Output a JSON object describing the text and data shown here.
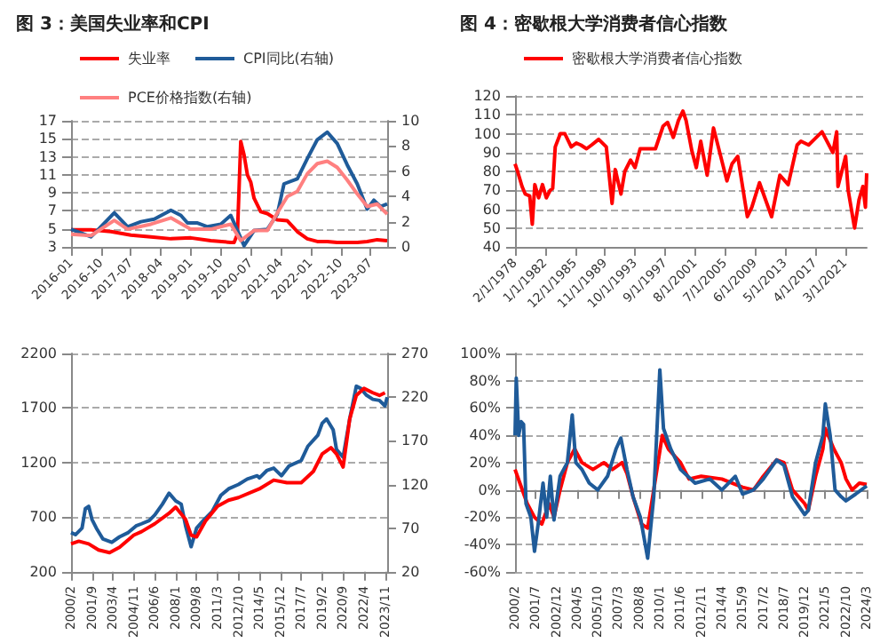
{
  "chart_data": [
    {
      "type": "line",
      "title": "图 3：美国失业率和CPI",
      "legend": "top",
      "grid": "y",
      "line_style": "solid",
      "marker": "none",
      "xlim": [
        "2016-01",
        "2023-12"
      ],
      "xticks": [
        "2016-01",
        "2016-10",
        "2017-07",
        "2018-04",
        "2019-01",
        "2019-10",
        "2020-07",
        "2021-04",
        "2022-01",
        "2022-10",
        "2023-07"
      ],
      "ylim": [
        3,
        17
      ],
      "yticks": [
        3,
        5,
        7,
        9,
        11,
        13,
        15,
        17
      ],
      "y2lim": [
        0,
        10
      ],
      "y2ticks": [
        0,
        2,
        4,
        6,
        8,
        10
      ],
      "series": [
        {
          "name": "失业率",
          "color": "#ff0000",
          "x": [
            "2016-01",
            "2016-07",
            "2017-01",
            "2017-07",
            "2018-01",
            "2018-07",
            "2019-01",
            "2019-07",
            "2020-01",
            "2020-02",
            "2020-03",
            "2020-04",
            "2020-05",
            "2020-06",
            "2020-07",
            "2020-08",
            "2020-10",
            "2020-12",
            "2021-03",
            "2021-06",
            "2021-09",
            "2021-12",
            "2022-03",
            "2022-06",
            "2022-09",
            "2022-12",
            "2023-03",
            "2023-06",
            "2023-09",
            "2023-12"
          ],
          "values": [
            4.9,
            4.9,
            4.7,
            4.3,
            4.1,
            3.9,
            4.0,
            3.7,
            3.5,
            3.5,
            4.4,
            14.7,
            13.2,
            11.0,
            10.2,
            8.4,
            6.9,
            6.7,
            6.0,
            5.9,
            4.7,
            3.9,
            3.6,
            3.6,
            3.5,
            3.5,
            3.5,
            3.6,
            3.8,
            3.7
          ]
        },
        {
          "name": "CPI同比(右轴)",
          "color": "#1f5b99",
          "axis": "y2",
          "x": [
            "2016-01",
            "2016-04",
            "2016-07",
            "2016-10",
            "2017-02",
            "2017-06",
            "2017-10",
            "2018-02",
            "2018-07",
            "2018-10",
            "2018-12",
            "2019-03",
            "2019-06",
            "2019-10",
            "2020-01",
            "2020-05",
            "2020-08",
            "2020-12",
            "2021-03",
            "2021-05",
            "2021-09",
            "2021-12",
            "2022-03",
            "2022-06",
            "2022-09",
            "2022-12",
            "2023-03",
            "2023-06",
            "2023-08",
            "2023-10",
            "2023-12"
          ],
          "values": [
            1.4,
            1.1,
            0.8,
            1.6,
            2.7,
            1.6,
            2.0,
            2.2,
            2.9,
            2.5,
            1.9,
            1.9,
            1.6,
            1.8,
            2.5,
            0.1,
            1.3,
            1.4,
            2.6,
            5.0,
            5.4,
            7.0,
            8.5,
            9.1,
            8.2,
            6.5,
            5.0,
            3.0,
            3.7,
            3.2,
            3.4
          ]
        },
        {
          "name": "PCE价格指数(右轴)",
          "color": "#ff8080",
          "axis": "y2",
          "x": [
            "2016-01",
            "2016-07",
            "2017-02",
            "2017-06",
            "2018-01",
            "2018-07",
            "2019-01",
            "2019-07",
            "2020-01",
            "2020-04",
            "2020-08",
            "2020-12",
            "2021-03",
            "2021-06",
            "2021-09",
            "2021-12",
            "2022-03",
            "2022-06",
            "2022-09",
            "2022-12",
            "2023-03",
            "2023-06",
            "2023-09",
            "2023-12"
          ],
          "values": [
            1.0,
            0.9,
            2.1,
            1.4,
            1.8,
            2.3,
            1.4,
            1.4,
            1.8,
            0.5,
            1.3,
            1.3,
            2.7,
            4.0,
            4.4,
            5.8,
            6.6,
            6.8,
            6.3,
            5.3,
            4.2,
            3.2,
            3.4,
            2.6
          ]
        }
      ]
    },
    {
      "type": "line",
      "title": "图 4：密歇根大学消费者信心指数",
      "legend": "top",
      "grid": "y",
      "line_style": "solid",
      "marker": "none",
      "xlim": [
        "1978-02",
        "2024-01"
      ],
      "xticks": [
        {
          "value": "1978-02",
          "label": "2/1/1978"
        },
        {
          "value": "1982-01",
          "label": "1/1/1982"
        },
        {
          "value": "1985-12",
          "label": "12/1/1985"
        },
        {
          "value": "1989-11",
          "label": "11/1/1989"
        },
        {
          "value": "1993-10",
          "label": "10/1/1993"
        },
        {
          "value": "1997-09",
          "label": "9/1/1997"
        },
        {
          "value": "2001-08",
          "label": "8/1/2001"
        },
        {
          "value": "2005-07",
          "label": "7/1/2005"
        },
        {
          "value": "2009-06",
          "label": "6/1/2009"
        },
        {
          "value": "2013-05",
          "label": "5/1/2013"
        },
        {
          "value": "2017-04",
          "label": "4/1/2017"
        },
        {
          "value": "2021-03",
          "label": "3/1/2021"
        }
      ],
      "ylim": [
        40,
        120
      ],
      "yticks": [
        40,
        50,
        60,
        70,
        80,
        90,
        100,
        110,
        120
      ],
      "series": [
        {
          "name": "密歇根大学消费者信心指数",
          "color": "#ff0000",
          "x": [
            "1978-02",
            "1978-06",
            "1979-01",
            "1979-06",
            "1980-01",
            "1980-05",
            "1980-09",
            "1981-03",
            "1981-09",
            "1982-03",
            "1982-09",
            "1983-01",
            "1983-05",
            "1984-01",
            "1984-08",
            "1985-06",
            "1986-02",
            "1986-09",
            "1987-06",
            "1988-02",
            "1989-01",
            "1990-01",
            "1990-10",
            "1991-03",
            "1991-12",
            "1992-06",
            "1993-03",
            "1993-10",
            "1994-06",
            "1995-06",
            "1996-06",
            "1997-06",
            "1998-01",
            "1998-10",
            "1999-06",
            "2000-01",
            "2000-06",
            "2001-03",
            "2001-10",
            "2002-05",
            "2003-03",
            "2004-01",
            "2005-10",
            "2006-06",
            "2007-03",
            "2008-06",
            "2009-01",
            "2010-01",
            "2011-08",
            "2012-09",
            "2013-10",
            "2014-12",
            "2015-06",
            "2016-06",
            "2017-03",
            "2018-03",
            "2019-08",
            "2020-02",
            "2020-04",
            "2021-04",
            "2021-08",
            "2022-06",
            "2023-01",
            "2023-07",
            "2023-11",
            "2024-01"
          ],
          "values": [
            84,
            80,
            72,
            68,
            67,
            52,
            73,
            66,
            73,
            66,
            70,
            71,
            93,
            100,
            100,
            93,
            95,
            94,
            92,
            94,
            97,
            93,
            63,
            81,
            68,
            80,
            86,
            82,
            92,
            92,
            92,
            104,
            106,
            98,
            107,
            112,
            107,
            91,
            82,
            96,
            78,
            103,
            75,
            84,
            88,
            56,
            61,
            74,
            56,
            78,
            73,
            94,
            96,
            94,
            97,
            101,
            90,
            101,
            72,
            88,
            70,
            50,
            65,
            72,
            61,
            79
          ]
        }
      ]
    },
    {
      "type": "line",
      "legend": false,
      "grid": "y",
      "line_style": "solid",
      "marker": "none",
      "xlim": [
        "2000-02",
        "2024-01"
      ],
      "xticks": [
        {
          "value": "2000-02",
          "label": "2000/2"
        },
        {
          "value": "2001-09",
          "label": "2001/9"
        },
        {
          "value": "2003-04",
          "label": "2003/4"
        },
        {
          "value": "2004-11",
          "label": "2004/11"
        },
        {
          "value": "2006-06",
          "label": "2006/6"
        },
        {
          "value": "2008-01",
          "label": "2008/1"
        },
        {
          "value": "2009-08",
          "label": "2009/8"
        },
        {
          "value": "2011-03",
          "label": "2011/3"
        },
        {
          "value": "2012-10",
          "label": "2012/10"
        },
        {
          "value": "2014-05",
          "label": "2014/5"
        },
        {
          "value": "2015-12",
          "label": "2015/12"
        },
        {
          "value": "2017-07",
          "label": "2017/7"
        },
        {
          "value": "2019-02",
          "label": "2019/2"
        },
        {
          "value": "2020-09",
          "label": "2020/9"
        },
        {
          "value": "2022-04",
          "label": "2022/4"
        },
        {
          "value": "2023-11",
          "label": "2023/11"
        }
      ],
      "ylim": [
        200,
        2200
      ],
      "yticks": [
        200,
        700,
        1200,
        1700,
        2200
      ],
      "y2lim": [
        20,
        270
      ],
      "y2ticks": [
        20,
        70,
        120,
        170,
        220,
        270
      ],
      "series": [
        {
          "color": "#1f5b99",
          "x": [
            "2000-02",
            "2000-06",
            "2000-12",
            "2001-03",
            "2001-06",
            "2001-09",
            "2002-01",
            "2002-07",
            "2003-03",
            "2003-10",
            "2004-06",
            "2005-01",
            "2005-06",
            "2006-01",
            "2006-06",
            "2007-01",
            "2007-07",
            "2008-01",
            "2008-06",
            "2008-10",
            "2009-03",
            "2009-08",
            "2010-03",
            "2010-10",
            "2011-06",
            "2012-01",
            "2012-10",
            "2013-06",
            "2014-03",
            "2014-05",
            "2014-12",
            "2015-06",
            "2016-01",
            "2016-08",
            "2017-07",
            "2018-01",
            "2018-10",
            "2019-02",
            "2019-06",
            "2019-12",
            "2020-03",
            "2020-09",
            "2021-03",
            "2021-09",
            "2022-01",
            "2022-06",
            "2022-12",
            "2023-06",
            "2023-11",
            "2024-01"
          ],
          "values": [
            560,
            540,
            600,
            780,
            800,
            680,
            600,
            500,
            470,
            520,
            560,
            620,
            640,
            670,
            720,
            820,
            920,
            850,
            820,
            620,
            430,
            600,
            680,
            750,
            900,
            960,
            1000,
            1050,
            1080,
            1060,
            1130,
            1150,
            1080,
            1170,
            1220,
            1350,
            1450,
            1560,
            1600,
            1500,
            1320,
            1250,
            1600,
            1900,
            1880,
            1820,
            1780,
            1770,
            1720,
            1800
          ]
        },
        {
          "color": "#ff0000",
          "axis": "y2",
          "x": [
            "2000-02",
            "2000-09",
            "2001-06",
            "2002-03",
            "2003-01",
            "2003-10",
            "2004-11",
            "2005-06",
            "2006-06",
            "2007-07",
            "2008-01",
            "2008-10",
            "2009-03",
            "2009-08",
            "2010-04",
            "2011-03",
            "2012-01",
            "2012-10",
            "2014-05",
            "2015-06",
            "2016-06",
            "2017-07",
            "2018-06",
            "2019-02",
            "2019-10",
            "2020-03",
            "2020-09",
            "2021-03",
            "2021-09",
            "2022-04",
            "2022-12",
            "2023-06",
            "2023-11"
          ],
          "values": [
            52,
            55,
            52,
            45,
            42,
            48,
            62,
            66,
            75,
            87,
            94,
            80,
            62,
            60,
            78,
            95,
            102,
            105,
            115,
            125,
            122,
            122,
            135,
            155,
            162,
            155,
            140,
            195,
            222,
            230,
            225,
            222,
            225
          ]
        }
      ]
    },
    {
      "type": "line",
      "legend": false,
      "grid": "y",
      "line_style": "solid",
      "marker": "none",
      "xlim": [
        "2000-02",
        "2024-03"
      ],
      "xticks": [
        {
          "value": "2000-02",
          "label": "2000/2"
        },
        {
          "value": "2001-07",
          "label": "2001/7"
        },
        {
          "value": "2002-12",
          "label": "2002/12"
        },
        {
          "value": "2004-05",
          "label": "2004/5"
        },
        {
          "value": "2005-10",
          "label": "2005/10"
        },
        {
          "value": "2007-03",
          "label": "2007/3"
        },
        {
          "value": "2008-08",
          "label": "2008/8"
        },
        {
          "value": "2010-01",
          "label": "2010/1"
        },
        {
          "value": "2011-06",
          "label": "2011/6"
        },
        {
          "value": "2012-11",
          "label": "2012/11"
        },
        {
          "value": "2014-04",
          "label": "2014/4"
        },
        {
          "value": "2015-09",
          "label": "2015/9"
        },
        {
          "value": "2017-02",
          "label": "2017/2"
        },
        {
          "value": "2018-07",
          "label": "2018/7"
        },
        {
          "value": "2019-12",
          "label": "2019/12"
        },
        {
          "value": "2021-05",
          "label": "2021/5"
        },
        {
          "value": "2022-10",
          "label": "2022/10"
        },
        {
          "value": "2024-03",
          "label": "2024/3"
        }
      ],
      "ylim": [
        -60,
        100
      ],
      "yticks": [
        {
          "value": -60,
          "label": "-60%"
        },
        {
          "value": -40,
          "label": "-40%"
        },
        {
          "value": -20,
          "label": "-20%"
        },
        {
          "value": 0,
          "label": "0%"
        },
        {
          "value": 20,
          "label": "20%"
        },
        {
          "value": 40,
          "label": "40%"
        },
        {
          "value": 60,
          "label": "60%"
        },
        {
          "value": 80,
          "label": "80%"
        },
        {
          "value": 100,
          "label": "100%"
        }
      ],
      "series": [
        {
          "color": "#ff0000",
          "x": [
            "2000-02",
            "2000-06",
            "2000-12",
            "2001-06",
            "2001-12",
            "2002-06",
            "2002-10",
            "2003-03",
            "2003-09",
            "2004-03",
            "2004-09",
            "2005-06",
            "2006-03",
            "2006-10",
            "2007-06",
            "2007-10",
            "2008-03",
            "2008-10",
            "2009-03",
            "2009-08",
            "2010-03",
            "2010-08",
            "2011-06",
            "2012-01",
            "2012-11",
            "2014-04",
            "2015-09",
            "2016-06",
            "2017-02",
            "2018-01",
            "2018-07",
            "2019-02",
            "2019-12",
            "2020-03",
            "2020-09",
            "2021-03",
            "2021-05",
            "2021-12",
            "2022-06",
            "2022-10",
            "2023-03",
            "2023-09",
            "2024-03"
          ],
          "values": [
            15,
            5,
            -10,
            -20,
            -25,
            -10,
            -20,
            0,
            20,
            30,
            20,
            15,
            20,
            15,
            20,
            12,
            -5,
            -25,
            -28,
            0,
            40,
            30,
            20,
            8,
            10,
            8,
            2,
            0,
            10,
            22,
            20,
            0,
            -10,
            -15,
            10,
            30,
            45,
            30,
            20,
            8,
            0,
            5,
            4
          ]
        },
        {
          "color": "#1f5b99",
          "x": [
            "2000-02",
            "2000-03",
            "2000-05",
            "2000-07",
            "2000-09",
            "2000-11",
            "2001-03",
            "2001-06",
            "2001-09",
            "2002-01",
            "2002-04",
            "2002-07",
            "2002-10",
            "2003-03",
            "2003-09",
            "2004-01",
            "2004-04",
            "2004-09",
            "2005-03",
            "2005-10",
            "2006-06",
            "2007-01",
            "2007-05",
            "2007-10",
            "2008-03",
            "2008-09",
            "2009-03",
            "2009-08",
            "2010-01",
            "2010-04",
            "2010-10",
            "2011-06",
            "2012-06",
            "2013-06",
            "2014-04",
            "2015-03",
            "2015-09",
            "2016-06",
            "2017-02",
            "2018-01",
            "2018-07",
            "2019-02",
            "2019-12",
            "2020-03",
            "2020-09",
            "2021-03",
            "2021-05",
            "2021-09",
            "2022-01",
            "2022-06",
            "2022-10",
            "2023-06",
            "2024-03"
          ],
          "values": [
            40,
            82,
            40,
            50,
            48,
            -10,
            -20,
            -45,
            -25,
            5,
            -20,
            10,
            -22,
            10,
            20,
            55,
            20,
            15,
            5,
            0,
            10,
            30,
            38,
            15,
            -5,
            -20,
            -50,
            -5,
            88,
            45,
            30,
            15,
            5,
            8,
            0,
            10,
            -3,
            0,
            8,
            22,
            18,
            -5,
            -18,
            -15,
            20,
            40,
            63,
            40,
            0,
            -5,
            -8,
            -3,
            3
          ]
        }
      ]
    }
  ]
}
